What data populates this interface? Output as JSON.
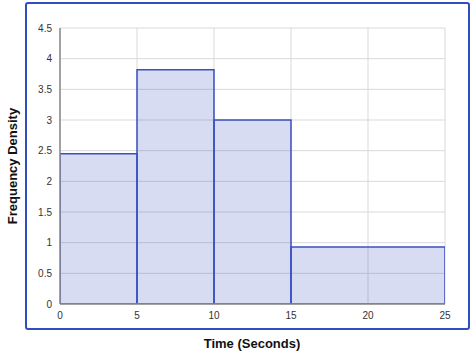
{
  "chart_data": {
    "type": "histogram",
    "x_label": "Time (Seconds)",
    "y_label": "Frequency Density",
    "bins": [
      0,
      5,
      10,
      15,
      25
    ],
    "values": [
      2.45,
      3.82,
      3.0,
      0.93
    ],
    "color": "#3b4fc4",
    "xlim": [
      0,
      25
    ],
    "xticks": [
      0,
      5,
      10,
      15,
      20,
      25
    ],
    "ylim": [
      0,
      4.5
    ],
    "yticks": [
      0,
      0.5,
      1,
      1.5,
      2,
      2.5,
      3,
      3.5,
      4,
      4.5
    ],
    "grid": true
  }
}
